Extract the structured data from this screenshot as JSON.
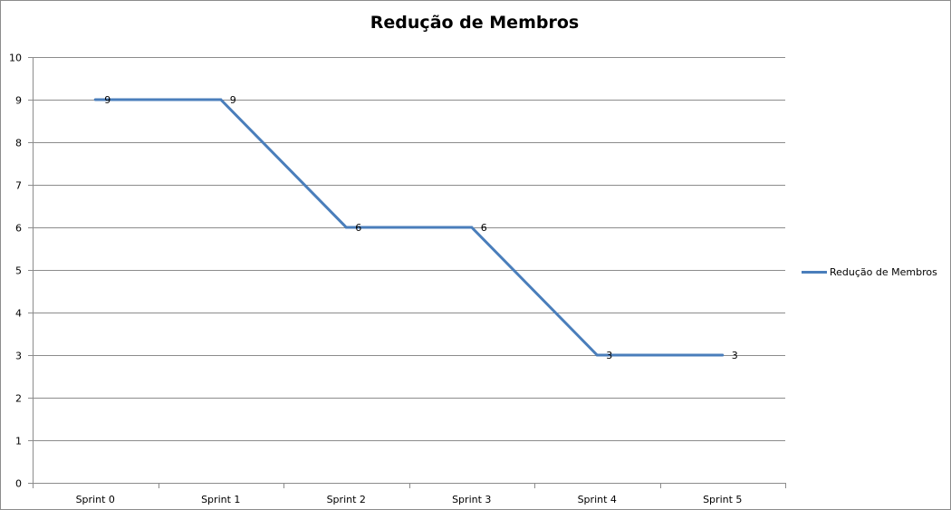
{
  "chart_data": {
    "type": "line",
    "title": "Redução de Membros",
    "xlabel": "",
    "ylabel": "",
    "categories": [
      "Sprint 0",
      "Sprint 1",
      "Sprint 2",
      "Sprint 3",
      "Sprint 4",
      "Sprint 5"
    ],
    "series": [
      {
        "name": "Redução de Membros",
        "values": [
          9,
          9,
          6,
          6,
          3,
          3
        ],
        "color": "#4a7ebb"
      }
    ],
    "ylim": [
      0,
      10
    ],
    "yticks": [
      "0",
      "1",
      "2",
      "3",
      "4",
      "5",
      "6",
      "7",
      "8",
      "9",
      "10"
    ],
    "grid": true,
    "legend_position": "right",
    "data_labels": true
  }
}
